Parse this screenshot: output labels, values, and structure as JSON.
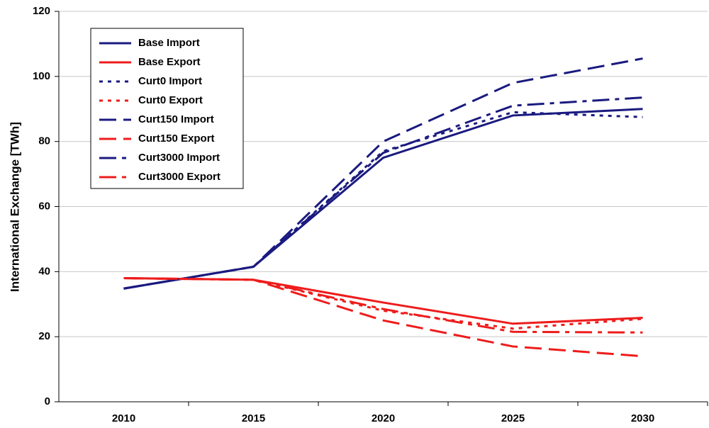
{
  "chart_data": {
    "type": "line",
    "y_label": "International Exchange [TWh]",
    "categories": [
      "2010",
      "2015",
      "2020",
      "2025",
      "2030"
    ],
    "ylim": [
      0,
      120
    ],
    "yticks": [
      0,
      20,
      40,
      60,
      80,
      100,
      120
    ],
    "grid": true,
    "legend": "upper left",
    "series": [
      {
        "name": "Base Import",
        "color": "#1a1a80",
        "dash": "solid",
        "values": [
          34.8,
          41.5,
          75,
          88,
          90
        ]
      },
      {
        "name": "Base Export",
        "color": "#ee1c1c",
        "dash": "solid",
        "values": [
          38,
          37.5,
          30.5,
          24,
          25.8
        ]
      },
      {
        "name": "Curt0 Import",
        "color": "#1a1a80",
        "dash": "dotted",
        "values": [
          34.8,
          41.5,
          77,
          89,
          87.5
        ]
      },
      {
        "name": "Curt0 Export",
        "color": "#ee1c1c",
        "dash": "dotted",
        "values": [
          38,
          37.5,
          28,
          22.5,
          25.5
        ]
      },
      {
        "name": "Curt150 Import",
        "color": "#1a1a80",
        "dash": "dashed",
        "values": [
          34.8,
          41.5,
          80,
          98,
          105.5
        ]
      },
      {
        "name": "Curt150 Export",
        "color": "#ee1c1c",
        "dash": "dashed",
        "values": [
          38,
          37.5,
          25,
          17,
          14
        ]
      },
      {
        "name": "Curt3000 Import",
        "color": "#1a1a80",
        "dash": "dashdot",
        "values": [
          34.8,
          41.5,
          76.5,
          91,
          93.5
        ]
      },
      {
        "name": "Curt3000 Export",
        "color": "#ee1c1c",
        "dash": "dashdot",
        "values": [
          38,
          37.5,
          28.5,
          21.5,
          21.3
        ]
      }
    ]
  }
}
